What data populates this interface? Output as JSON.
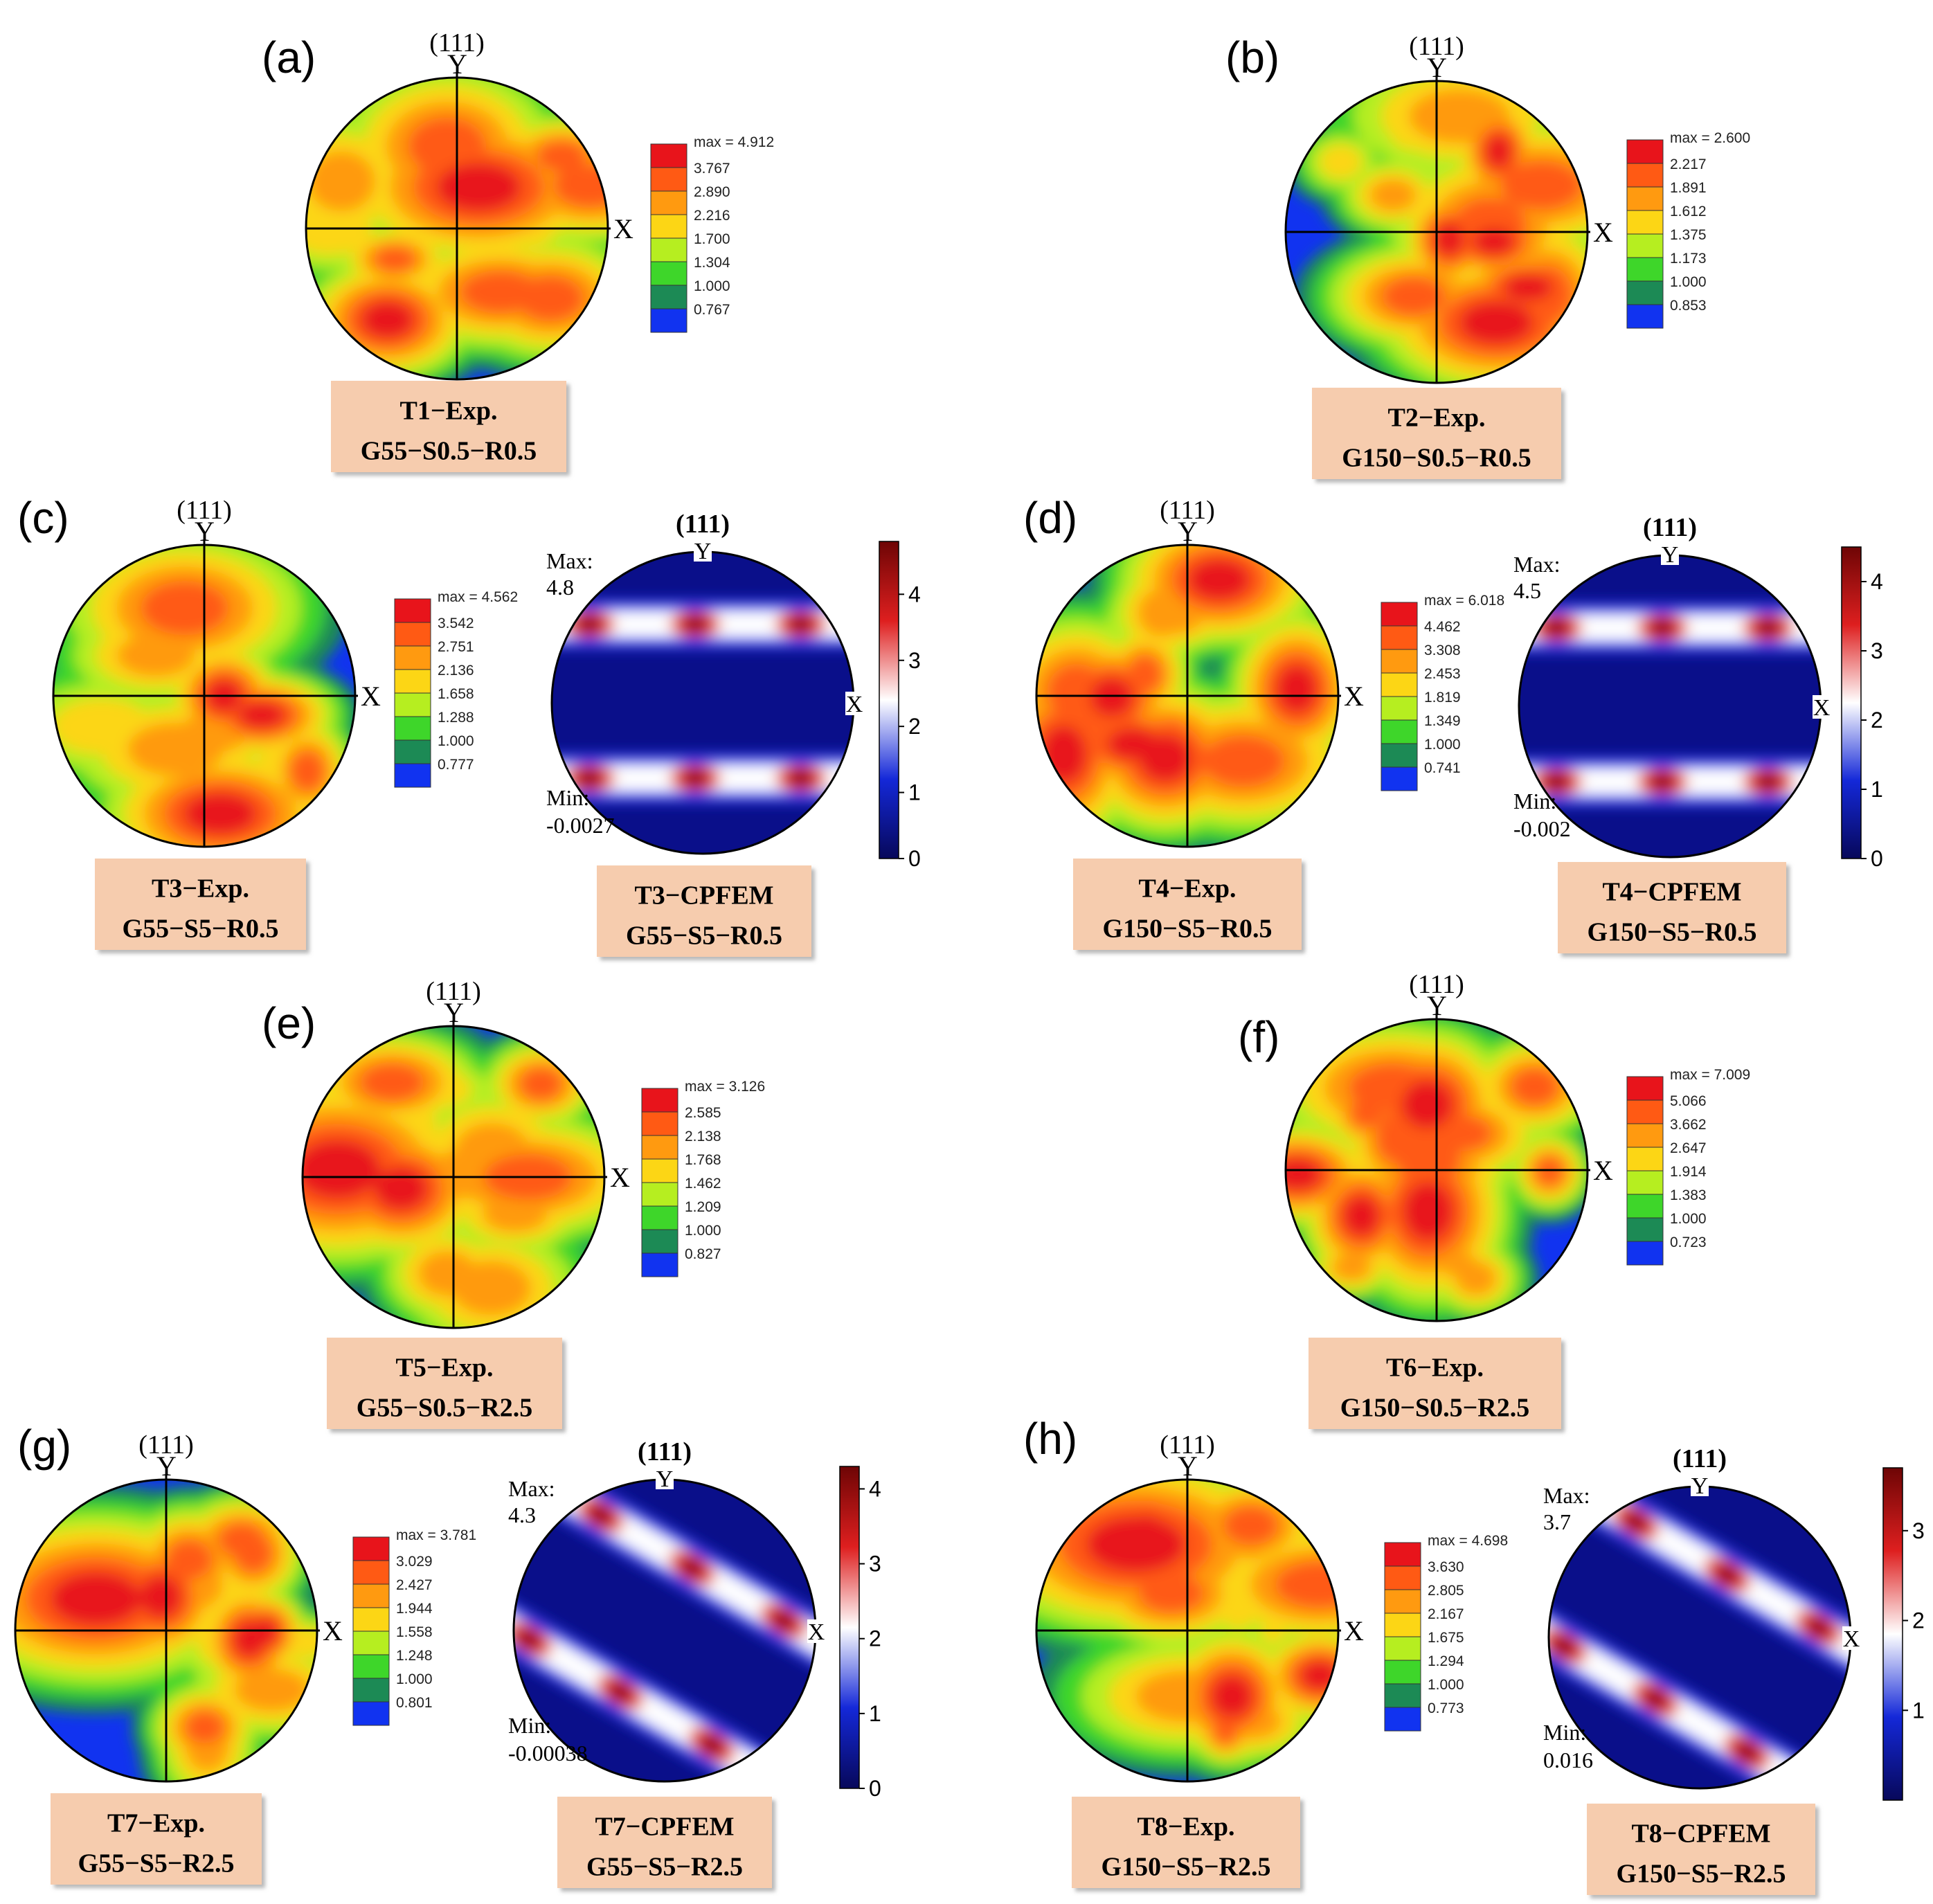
{
  "figure": {
    "pole_label": "(111)",
    "axis_x": "X",
    "axis_y": "Y",
    "panels": [
      {
        "letter": "(a)",
        "exp": {
          "caption": [
            "T1−Exp.",
            "G55−S0.5−R0.5"
          ],
          "legend_max": "max = 4.912",
          "legend_values": [
            "3.767",
            "2.890",
            "2.216",
            "1.700",
            "1.304",
            "1.000",
            "0.767"
          ]
        }
      },
      {
        "letter": "(b)",
        "exp": {
          "caption": [
            "T2−Exp.",
            "G150−S0.5−R0.5"
          ],
          "legend_max": "max = 2.600",
          "legend_values": [
            "2.217",
            "1.891",
            "1.612",
            "1.375",
            "1.173",
            "1.000",
            "0.853"
          ]
        }
      },
      {
        "letter": "(c)",
        "exp": {
          "caption": [
            "T3−Exp.",
            "G55−S5−R0.5"
          ],
          "legend_max": "max = 4.562",
          "legend_values": [
            "3.542",
            "2.751",
            "2.136",
            "1.658",
            "1.288",
            "1.000",
            "0.777"
          ]
        },
        "sim": {
          "caption": [
            "T3−CPFEM",
            "G55−S5−R0.5"
          ],
          "max_label": "Max:",
          "max": "4.8",
          "min_label": "Min:",
          "min": "-0.0027",
          "colorbar_ticks": [
            "4",
            "3",
            "2",
            "1",
            "0"
          ],
          "colorbar_range": [
            0,
            4.8
          ]
        }
      },
      {
        "letter": "(d)",
        "exp": {
          "caption": [
            "T4−Exp.",
            "G150−S5−R0.5"
          ],
          "legend_max": "max = 6.018",
          "legend_values": [
            "4.462",
            "3.308",
            "2.453",
            "1.819",
            "1.349",
            "1.000",
            "0.741"
          ]
        },
        "sim": {
          "caption": [
            "T4−CPFEM",
            "G150−S5−R0.5"
          ],
          "max_label": "Max:",
          "max": "4.5",
          "min_label": "Min:",
          "min": "-0.002",
          "colorbar_ticks": [
            "4",
            "3",
            "2",
            "1",
            "0"
          ],
          "colorbar_range": [
            0,
            4.5
          ]
        }
      },
      {
        "letter": "(e)",
        "exp": {
          "caption": [
            "T5−Exp.",
            "G55−S0.5−R2.5"
          ],
          "legend_max": "max = 3.126",
          "legend_values": [
            "2.585",
            "2.138",
            "1.768",
            "1.462",
            "1.209",
            "1.000",
            "0.827"
          ]
        }
      },
      {
        "letter": "(f)",
        "exp": {
          "caption": [
            "T6−Exp.",
            "G150−S0.5−R2.5"
          ],
          "legend_max": "max = 7.009",
          "legend_values": [
            "5.066",
            "3.662",
            "2.647",
            "1.914",
            "1.383",
            "1.000",
            "0.723"
          ]
        }
      },
      {
        "letter": "(g)",
        "exp": {
          "caption": [
            "T7−Exp.",
            "G55−S5−R2.5"
          ],
          "legend_max": "max = 3.781",
          "legend_values": [
            "3.029",
            "2.427",
            "1.944",
            "1.558",
            "1.248",
            "1.000",
            "0.801"
          ]
        },
        "sim": {
          "caption": [
            "T7−CPFEM",
            "G55−S5−R2.5"
          ],
          "max_label": "Max:",
          "max": "4.3",
          "min_label": "Min:",
          "min": "-0.00038",
          "colorbar_ticks": [
            "4",
            "3",
            "2",
            "1",
            "0"
          ],
          "colorbar_range": [
            0,
            4.3
          ]
        }
      },
      {
        "letter": "(h)",
        "exp": {
          "caption": [
            "T8−Exp.",
            "G150−S5−R2.5"
          ],
          "legend_max": "max = 4.698",
          "legend_values": [
            "3.630",
            "2.805",
            "2.167",
            "1.675",
            "1.294",
            "1.000",
            "0.773"
          ]
        },
        "sim": {
          "caption": [
            "T8−CPFEM",
            "G150−S5−R2.5"
          ],
          "max_label": "Max:",
          "max": "3.7",
          "min_label": "Min:",
          "min": "0.016",
          "colorbar_ticks": [
            "3",
            "2",
            "1"
          ],
          "colorbar_range": [
            0,
            3.7
          ]
        }
      }
    ]
  },
  "colors": {
    "exp_levels": [
      "#e8141b",
      "#ff5a14",
      "#ff9a10",
      "#fcd615",
      "#b6ee20",
      "#3ed62a",
      "#1c8a55",
      "#1133f0"
    ],
    "sim_scale": [
      "#07085a",
      "#1428d8",
      "#ffffff",
      "#de1f1f",
      "#6e0505"
    ],
    "caption_bg": "#f6ccae"
  }
}
